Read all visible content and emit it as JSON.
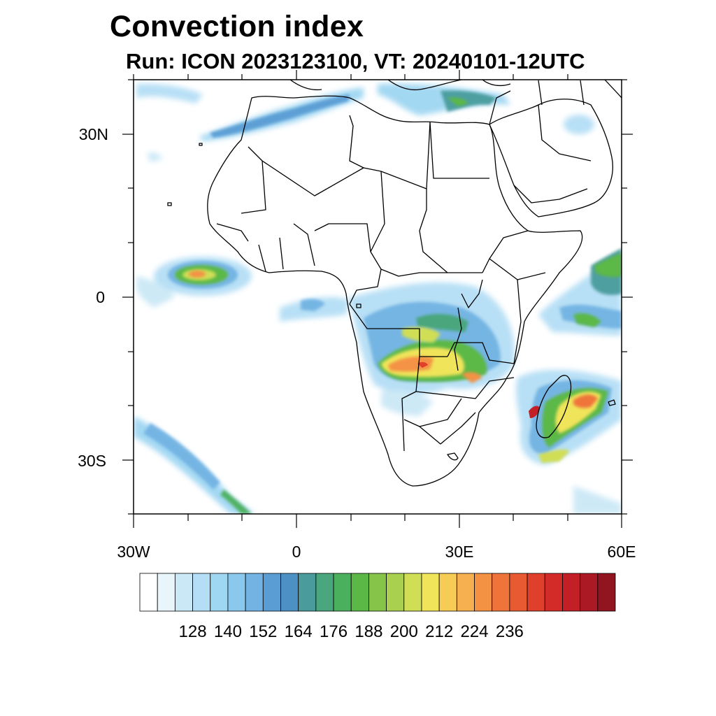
{
  "title": "Convection index",
  "subtitle": "Run: ICON 2023123100,  VT: 20240101-12UTC",
  "axes": {
    "y_labels": [
      "30N",
      "0",
      "30S"
    ],
    "x_labels": [
      "30W",
      "0",
      "30E",
      "60E"
    ]
  },
  "colorbar": {
    "colors": [
      "#ffffff",
      "#e8f5fb",
      "#cbe8f6",
      "#b4def5",
      "#9fd6f2",
      "#8ac8ed",
      "#72b3e3",
      "#5a9dd4",
      "#4b91c4",
      "#4a9c9c",
      "#49a67d",
      "#4bb05d",
      "#5bb846",
      "#86c449",
      "#aad050",
      "#d0de55",
      "#f0e45a",
      "#f7cc55",
      "#f6b04f",
      "#f49244",
      "#ef743a",
      "#e85a31",
      "#df3f2b",
      "#d32b28",
      "#c21f26",
      "#ab1a24",
      "#901521"
    ],
    "labels": [
      "128",
      "140",
      "152",
      "164",
      "176",
      "188",
      "200",
      "212",
      "224",
      "236"
    ]
  }
}
